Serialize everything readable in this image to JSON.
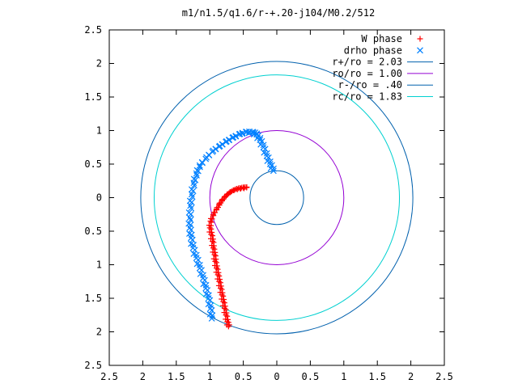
{
  "chart_data": {
    "type": "scatter",
    "title": "m1/n1.5/q1.6/r-+.20-j104/M0.2/512",
    "xlim": [
      2.5,
      -2.5
    ],
    "ylim": [
      -2.5,
      2.5
    ],
    "x_ticks": [
      {
        "value": 2.5,
        "label": "2.5"
      },
      {
        "value": 2,
        "label": "2"
      },
      {
        "value": 1.5,
        "label": "1.5"
      },
      {
        "value": 1,
        "label": "1"
      },
      {
        "value": 0.5,
        "label": "0.5"
      },
      {
        "value": 0,
        "label": "0"
      },
      {
        "value": -0.5,
        "label": "0.5"
      },
      {
        "value": -1,
        "label": "1"
      },
      {
        "value": -1.5,
        "label": "1.5"
      },
      {
        "value": -2,
        "label": "2"
      },
      {
        "value": -2.5,
        "label": "2.5"
      }
    ],
    "y_ticks": [
      {
        "value": 2.5,
        "label": "2.5"
      },
      {
        "value": 2,
        "label": "2"
      },
      {
        "value": 1.5,
        "label": "1.5"
      },
      {
        "value": 1,
        "label": "1"
      },
      {
        "value": 0.5,
        "label": "0.5"
      },
      {
        "value": 0,
        "label": "0"
      },
      {
        "value": -0.5,
        "label": "0.5"
      },
      {
        "value": -1,
        "label": "1"
      },
      {
        "value": -1.5,
        "label": "1.5"
      },
      {
        "value": -2,
        "label": "2"
      },
      {
        "value": -2.5,
        "label": "2.5"
      }
    ],
    "grid": false,
    "legend_position": "top-right",
    "series": [
      {
        "name": "W phase",
        "kind": "points",
        "marker": "plus",
        "color": "#ff0000",
        "x": [
          0.45,
          0.5,
          0.55,
          0.6,
          0.65,
          0.7,
          0.74,
          0.78,
          0.82,
          0.86,
          0.9,
          0.95,
          0.99,
          1.0,
          0.98,
          0.96,
          0.95,
          0.93,
          0.92,
          0.9,
          0.88,
          0.86,
          0.84,
          0.82,
          0.8,
          0.78,
          0.76,
          0.74,
          0.72
        ],
        "y": [
          0.15,
          0.15,
          0.14,
          0.13,
          0.11,
          0.08,
          0.05,
          0.01,
          -0.04,
          -0.1,
          -0.17,
          -0.25,
          -0.35,
          -0.45,
          -0.55,
          -0.65,
          -0.75,
          -0.85,
          -0.95,
          -1.05,
          -1.15,
          -1.25,
          -1.35,
          -1.45,
          -1.55,
          -1.65,
          -1.75,
          -1.85,
          -1.92
        ]
      },
      {
        "name": "drho phase",
        "kind": "points",
        "marker": "cross",
        "color": "#0080ff",
        "x": [
          0.05,
          0.1,
          0.15,
          0.2,
          0.25,
          0.3,
          0.35,
          0.45,
          0.55,
          0.65,
          0.75,
          0.85,
          0.95,
          1.05,
          1.15,
          1.2,
          1.24,
          1.27,
          1.29,
          1.3,
          1.3,
          1.28,
          1.25,
          1.2,
          1.15,
          1.1,
          1.06,
          1.02,
          0.99,
          0.97
        ],
        "y": [
          0.4,
          0.5,
          0.62,
          0.75,
          0.86,
          0.94,
          0.97,
          0.98,
          0.95,
          0.9,
          0.84,
          0.77,
          0.7,
          0.6,
          0.48,
          0.36,
          0.22,
          0.05,
          -0.12,
          -0.3,
          -0.45,
          -0.6,
          -0.75,
          -0.9,
          -1.05,
          -1.2,
          -1.35,
          -1.5,
          -1.65,
          -1.8
        ]
      },
      {
        "name": "r+/ro = 2.03",
        "kind": "circle",
        "radius": 2.03,
        "color": "#0060ad"
      },
      {
        "name": "ro/ro = 1.00",
        "kind": "circle",
        "radius": 1.0,
        "color": "#9400d3"
      },
      {
        "name": "r-/ro = .40",
        "kind": "circle",
        "radius": 0.4,
        "color": "#0060ad"
      },
      {
        "name": "rc/ro = 1.83",
        "kind": "circle",
        "radius": 1.83,
        "color": "#00d0d0"
      }
    ]
  }
}
